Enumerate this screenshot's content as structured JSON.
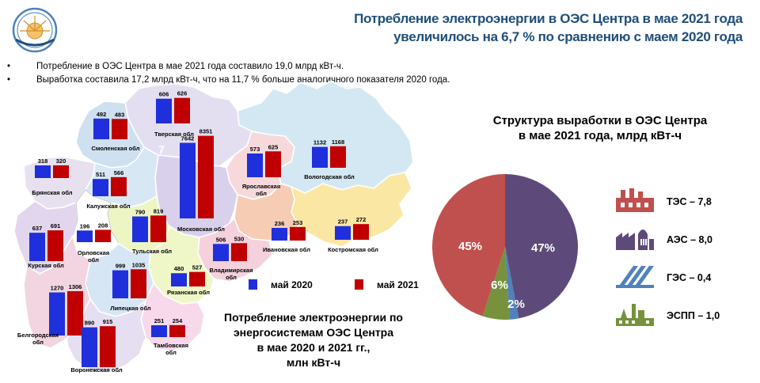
{
  "header": {
    "title_line1": "Потребление электроэнергии в ОЭС Центра в мае 2021 года",
    "title_line2": "увеличилось на 6,7 % по сравнению с маем 2020 года"
  },
  "bullets": [
    "Потребление  в ОЭС Центра  в мае 2021 года составило  19,0 млрд  кВт-ч.",
    "Выработка  составила  17,2 млрд  кВт-ч,  что  на  11,7 %  больше  аналогичного  показателя  2020 года."
  ],
  "pie_title": {
    "line1": "Структура выработки в ОЭС Центра",
    "line2": "в мае 2021 года, млрд кВт-ч"
  },
  "consumption_title": {
    "line1": "Потребление электроэнергии по",
    "line2": "энергосистемам ОЭС Центра",
    "line3": "в мае 2020 и 2021 гг.,",
    "line4": "млн кВт-ч"
  },
  "legend": {
    "y2020": "май 2020",
    "y2021": "май 2021"
  },
  "plant_types": [
    {
      "label": "ТЭС – 7,8",
      "icon": "thermal-plant-icon",
      "color": "#c0504d"
    },
    {
      "label": "АЭС – 8,0",
      "icon": "nuclear-plant-icon",
      "color": "#5e4a7a"
    },
    {
      "label": "ГЭС – 0,4",
      "icon": "hydro-plant-icon",
      "color": "#4f81bd"
    },
    {
      "label": "ЭСПП – 1,0",
      "icon": "industrial-plant-icon",
      "color": "#76923c"
    }
  ],
  "colors": {
    "y2020": "#1f2fdc",
    "y2021": "#c00000",
    "title": "#1f4e79"
  },
  "map_region_label": "7",
  "chart_data": [
    {
      "type": "bar",
      "title": "Потребление электроэнергии по энергосистемам ОЭС Центра в мае 2020 и 2021 гг., млн кВт-ч",
      "series": [
        {
          "name": "май 2020"
        },
        {
          "name": "май 2021"
        }
      ],
      "categories": [
        {
          "name": "Тверская обл",
          "v2020": 606,
          "v2021": 626
        },
        {
          "name": "Смоленская обл",
          "v2020": 492,
          "v2021": 483
        },
        {
          "name": "Брянская обл",
          "v2020": 318,
          "v2021": 320
        },
        {
          "name": "Калужская обл",
          "v2020": 511,
          "v2021": 566
        },
        {
          "name": "Московская обл",
          "v2020": 7642,
          "v2021": 8351
        },
        {
          "name": "Ярославская обл",
          "v2020": 573,
          "v2021": 625
        },
        {
          "name": "Вологодская обл",
          "v2020": 1132,
          "v2021": 1168
        },
        {
          "name": "Курская обл",
          "v2020": 637,
          "v2021": 691
        },
        {
          "name": "Орловская обл",
          "v2020": 196,
          "v2021": 208
        },
        {
          "name": "Тульская обл",
          "v2020": 790,
          "v2021": 819
        },
        {
          "name": "Ивановская обл",
          "v2020": 236,
          "v2021": 253
        },
        {
          "name": "Костромская обл",
          "v2020": 237,
          "v2021": 272
        },
        {
          "name": "Владимирская обл",
          "v2020": 506,
          "v2021": 530
        },
        {
          "name": "Рязанская обл",
          "v2020": 480,
          "v2021": 527
        },
        {
          "name": "Липецкая обл",
          "v2020": 999,
          "v2021": 1035
        },
        {
          "name": "Белгородская обл",
          "v2020": 1270,
          "v2021": 1306
        },
        {
          "name": "Воронежская обл",
          "v2020": 890,
          "v2021": 915
        },
        {
          "name": "Тамбовская обл",
          "v2020": 251,
          "v2021": 254
        }
      ]
    },
    {
      "type": "pie",
      "title": "Структура выработки в ОЭС Центра в мае 2021 года, млрд кВт-ч",
      "slices": [
        {
          "name": "АЭС",
          "value": 47,
          "label": "47%",
          "color": "#5e4a7a"
        },
        {
          "name": "ГЭС",
          "value": 2,
          "label": "2%",
          "color": "#4f81bd"
        },
        {
          "name": "ЭСПП",
          "value": 6,
          "label": "6%",
          "color": "#76923c"
        },
        {
          "name": "ТЭС",
          "value": 45,
          "label": "45%",
          "color": "#c0504d"
        }
      ]
    }
  ]
}
